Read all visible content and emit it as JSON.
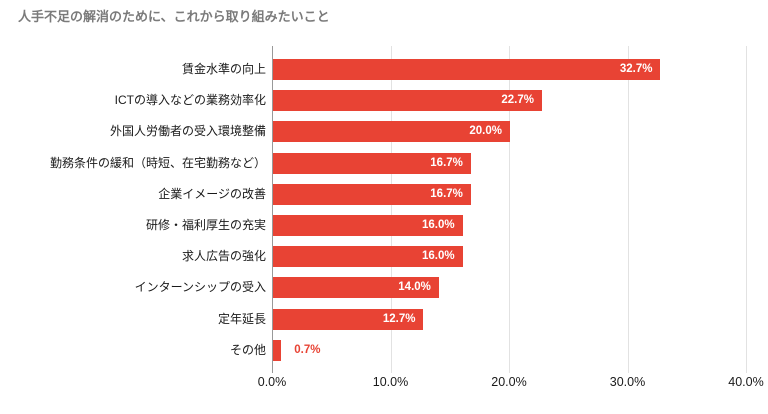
{
  "chart_data": {
    "type": "bar",
    "orientation": "horizontal",
    "title": "人手不足の解消のために、これから取り組みたいこと",
    "categories": [
      "賃金水準の向上",
      "ICTの導入などの業務効率化",
      "外国人労働者の受入環境整備",
      "勤務条件の緩和（時短、在宅勤務など）",
      "企業イメージの改善",
      "研修・福利厚生の充実",
      "求人広告の強化",
      "インターンシップの受入",
      "定年延長",
      "その他"
    ],
    "values": [
      32.7,
      22.7,
      20.0,
      16.7,
      16.7,
      16.0,
      16.0,
      14.0,
      12.7,
      0.7
    ],
    "value_labels": [
      "32.7%",
      "22.7%",
      "20.0%",
      "16.7%",
      "16.7%",
      "16.0%",
      "16.0%",
      "14.0%",
      "12.7%",
      "0.7%"
    ],
    "x_tick_labels": [
      "0.0%",
      "10.0%",
      "20.0%",
      "30.0%",
      "40.0%"
    ],
    "x_tick_values": [
      0,
      10,
      20,
      30,
      40
    ],
    "xlim": [
      0,
      40
    ],
    "grid": true,
    "legend": "none",
    "outside_label_threshold": 4,
    "colors": {
      "bar": "#e84334",
      "value_label_inside": "#ffffff",
      "value_label_outside": "#e84334",
      "title": "#7a7a7a",
      "category_label": "#1a1a1a",
      "axis_label": "#1a1a1a",
      "gridline": "#e2e2e2",
      "axis_line": "#999999",
      "background": "#ffffff"
    }
  }
}
